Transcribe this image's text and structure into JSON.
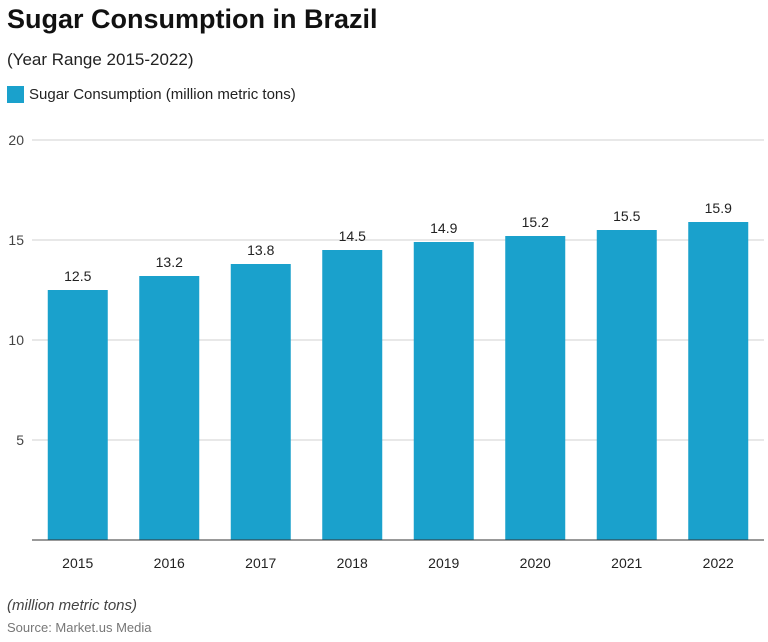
{
  "chart_data": {
    "type": "bar",
    "title": "Sugar Consumption in Brazil",
    "subtitle": "(Year Range 2015-2022)",
    "categories": [
      "2015",
      "2016",
      "2017",
      "2018",
      "2019",
      "2020",
      "2021",
      "2022"
    ],
    "series": [
      {
        "name": "Sugar Consumption (million metric tons)",
        "values": [
          12.5,
          13.2,
          13.8,
          14.5,
          14.9,
          15.2,
          15.5,
          15.9
        ]
      }
    ],
    "ylim": [
      0,
      20
    ],
    "yticks": [
      5,
      10,
      15,
      20
    ],
    "grid": true,
    "legend": "top-left",
    "color": "#1aa1cc",
    "note": "(million metric tons)",
    "source": "Source: Market.us Media"
  }
}
